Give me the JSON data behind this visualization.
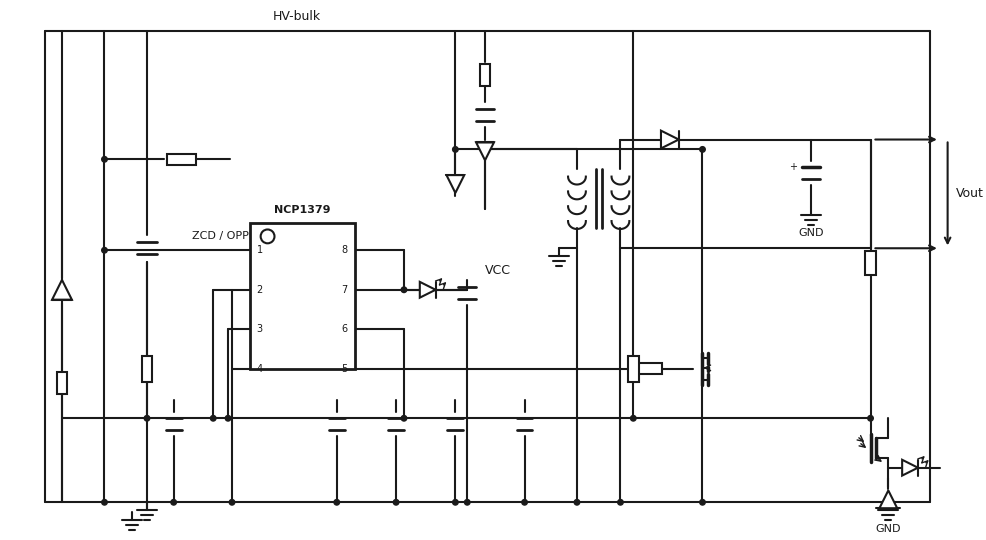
{
  "bg": "#ffffff",
  "lc": "#1a1a1a",
  "lw": 1.5,
  "fig_w": 9.86,
  "fig_h": 5.4,
  "dpi": 100,
  "labels": {
    "hv_bulk": "HV-bulk",
    "ncp1379": "NCP1379",
    "zcd_opp": "ZCD / OPP",
    "vcc": "VCC",
    "vout": "Vout",
    "gnd": "GND"
  }
}
